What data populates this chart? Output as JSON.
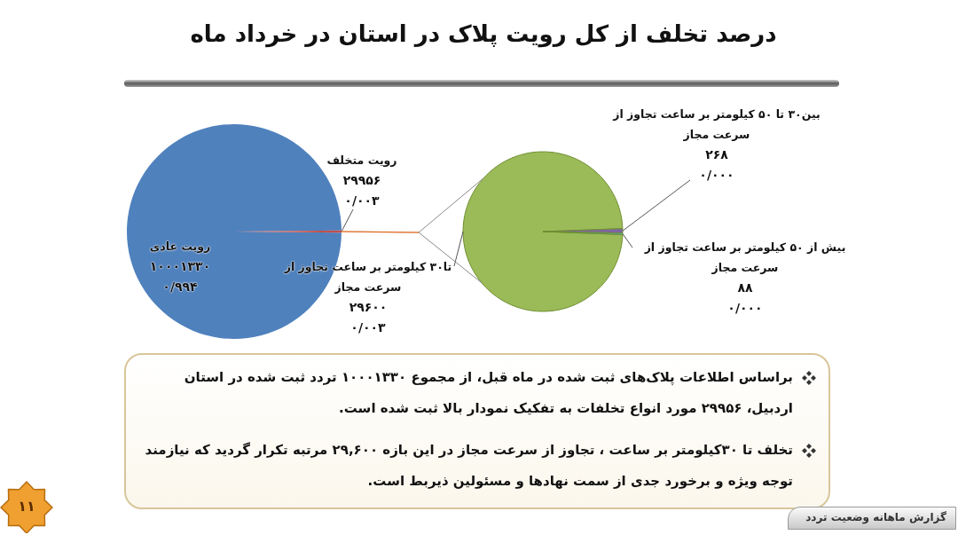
{
  "chart_data": [
    {
      "type": "pie",
      "title": "درصد تخلف از کل رویت پلاک در استان در خرداد ماه",
      "categories": [
        "رویت عادی",
        "رویت متخلف"
      ],
      "values": [
        10001330,
        29956
      ],
      "colors": [
        "#4f81bd",
        "#c0504d"
      ],
      "value_labels": [
        "۱۰۰۰۱۳۳۰\n۰/۹۹۴",
        "۲۹۹۵۶\n۰/۰۰۳"
      ]
    },
    {
      "type": "pie",
      "categories": [
        "تا۳۰ کیلومتر بر ساعت تجاوز از سرعت مجاز",
        "بین۳۰ تا ۵۰ کیلومتر بر ساعت تجاوز از سرعت مجاز",
        "بیش از ۵۰ کیلومتر بر ساعت تجاوز از سرعت مجاز"
      ],
      "values": [
        29600,
        268,
        88
      ],
      "colors": [
        "#9bbb59",
        "#8064a2",
        "#4bacc6"
      ],
      "value_labels": [
        "۲۹۶۰۰\n۰/۰۰۳",
        "۲۶۸\n۰/۰۰۰",
        "۸۸\n۰/۰۰۰"
      ]
    },
    {
      "type": "other",
      "annotations": [
        "براساس اطلاعات پلاک‌های ثبت شده در ماه قبل، از مجموع ۱۰۰۰۱۳۳۰ تردد ثبت شده در استان اردبیل، ۲۹۹۵۶ مورد انواع تخلفات به تفکیک نمودار بالا ثبت شده است.",
        "تخلف تا ۳۰کیلومتر بر ساعت ، تجاوز از سرعت مجاز در این بازه ۲۹,۶۰۰ مرتبه تکرار گردید که نیازمند توجه ویژه و برخورد جدی از سمت نهادها و مسئولین ذیربط است.",
        "گزارش ماهانه وضعیت تردد",
        "۱۱"
      ]
    }
  ]
}
